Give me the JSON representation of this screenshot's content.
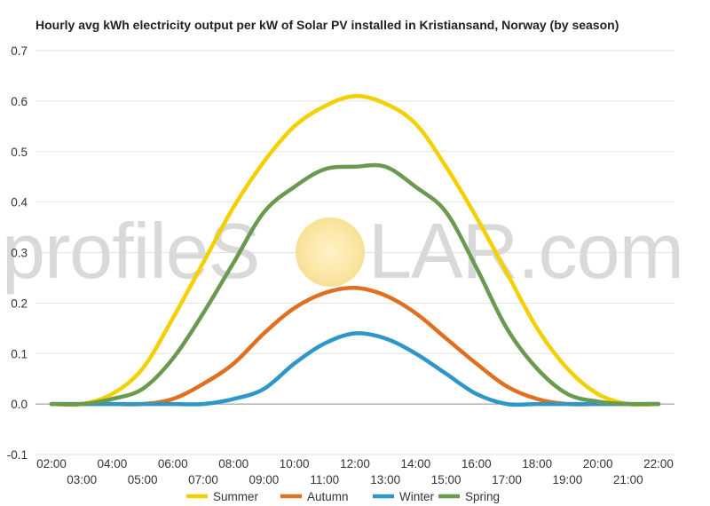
{
  "chart_data": {
    "type": "line",
    "title": "Hourly avg kWh electricity output per kW of Solar PV installed in Kristiansand, Norway (by season)",
    "xlabel": "",
    "ylabel": "",
    "ylim": [
      -0.1,
      0.7
    ],
    "yticks": [
      "0.7",
      "0.6",
      "0.5",
      "0.4",
      "0.3",
      "0.2",
      "0.1",
      "0.0",
      "-0.1"
    ],
    "ytick_values": [
      0.7,
      0.6,
      0.5,
      0.4,
      0.3,
      0.2,
      0.1,
      0.0,
      -0.1
    ],
    "categories": [
      "02:00",
      "03:00",
      "04:00",
      "05:00",
      "06:00",
      "07:00",
      "08:00",
      "09:00",
      "10:00",
      "11:00",
      "12:00",
      "13:00",
      "14:00",
      "15:00",
      "16:00",
      "17:00",
      "18:00",
      "19:00",
      "20:00",
      "21:00",
      "22:00"
    ],
    "grid": true,
    "legend_position": "bottom",
    "series": [
      {
        "name": "Summer",
        "color": "#f5d000",
        "values": [
          0.0,
          0.0,
          0.02,
          0.07,
          0.17,
          0.28,
          0.39,
          0.48,
          0.55,
          0.59,
          0.61,
          0.595,
          0.555,
          0.47,
          0.37,
          0.26,
          0.15,
          0.07,
          0.02,
          0.0,
          0.0
        ]
      },
      {
        "name": "Autumn",
        "color": "#e07020",
        "values": [
          0.0,
          0.0,
          0.0,
          0.0,
          0.01,
          0.04,
          0.08,
          0.14,
          0.19,
          0.22,
          0.23,
          0.215,
          0.18,
          0.13,
          0.08,
          0.035,
          0.01,
          0.0,
          0.0,
          0.0,
          0.0
        ]
      },
      {
        "name": "Winter",
        "color": "#2e96c8",
        "values": [
          0.0,
          0.0,
          0.0,
          0.0,
          0.0,
          0.0,
          0.01,
          0.03,
          0.08,
          0.12,
          0.14,
          0.13,
          0.1,
          0.06,
          0.02,
          0.0,
          0.0,
          0.0,
          0.0,
          0.0,
          0.0
        ]
      },
      {
        "name": "Spring",
        "color": "#6a9a50",
        "values": [
          0.0,
          0.0,
          0.01,
          0.03,
          0.09,
          0.18,
          0.28,
          0.38,
          0.43,
          0.465,
          0.47,
          0.47,
          0.43,
          0.38,
          0.27,
          0.15,
          0.07,
          0.02,
          0.005,
          0.0,
          0.0
        ]
      }
    ]
  },
  "watermark": {
    "text_left": "profileS",
    "text_right": "LAR.com",
    "logo_label": "profileSOLAR.com"
  }
}
